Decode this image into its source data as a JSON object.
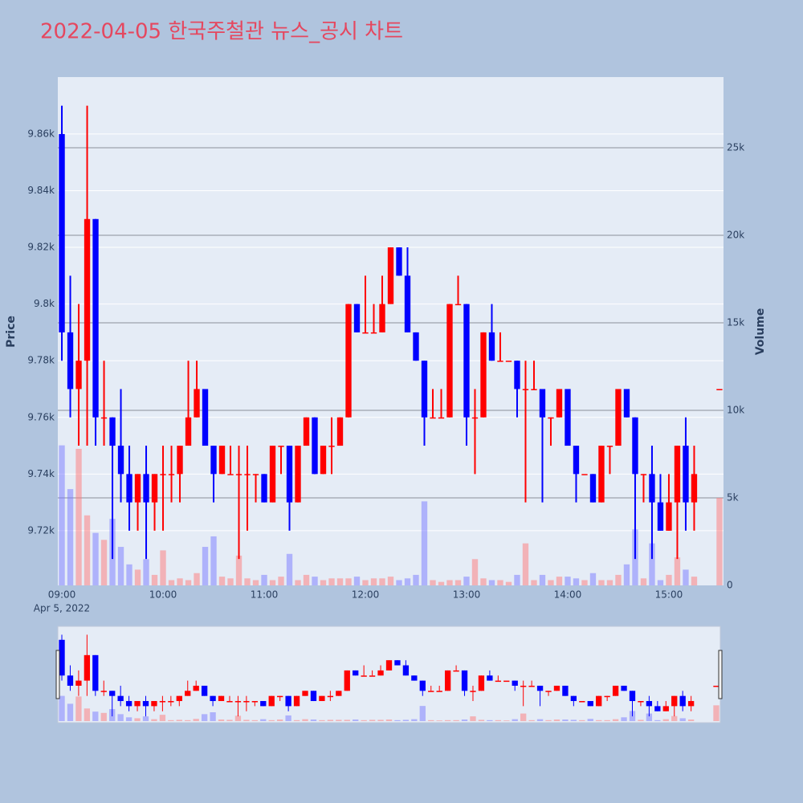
{
  "chart_data": {
    "type": "candlestick",
    "title": "2022-04-05 한국주철관 뉴스_공시 차트",
    "ylabel": "Price",
    "y2label": "Volume",
    "x_date_label": "Apr 5, 2022",
    "increasing_color": "#ff0000",
    "decreasing_color": "#0000ff",
    "volume_increasing_color": "rgba(255,120,120,0.5)",
    "volume_decreasing_color": "rgba(120,120,255,0.5)",
    "grid": true,
    "rangeslider": true,
    "x": [
      "2022-04-05 09:00",
      "2022-04-05 09:05",
      "2022-04-05 09:10",
      "2022-04-05 09:15",
      "2022-04-05 09:20",
      "2022-04-05 09:25",
      "2022-04-05 09:30",
      "2022-04-05 09:35",
      "2022-04-05 09:40",
      "2022-04-05 09:45",
      "2022-04-05 09:50",
      "2022-04-05 09:55",
      "2022-04-05 10:00",
      "2022-04-05 10:05",
      "2022-04-05 10:10",
      "2022-04-05 10:15",
      "2022-04-05 10:20",
      "2022-04-05 10:25",
      "2022-04-05 10:30",
      "2022-04-05 10:35",
      "2022-04-05 10:40",
      "2022-04-05 10:45",
      "2022-04-05 10:50",
      "2022-04-05 10:55",
      "2022-04-05 11:00",
      "2022-04-05 11:05",
      "2022-04-05 11:10",
      "2022-04-05 11:15",
      "2022-04-05 11:20",
      "2022-04-05 11:25",
      "2022-04-05 11:30",
      "2022-04-05 11:35",
      "2022-04-05 11:40",
      "2022-04-05 11:45",
      "2022-04-05 11:50",
      "2022-04-05 11:55",
      "2022-04-05 12:00",
      "2022-04-05 12:05",
      "2022-04-05 12:10",
      "2022-04-05 12:15",
      "2022-04-05 12:20",
      "2022-04-05 12:25",
      "2022-04-05 12:30",
      "2022-04-05 12:35",
      "2022-04-05 12:40",
      "2022-04-05 12:45",
      "2022-04-05 12:50",
      "2022-04-05 12:55",
      "2022-04-05 13:00",
      "2022-04-05 13:05",
      "2022-04-05 13:10",
      "2022-04-05 13:15",
      "2022-04-05 13:20",
      "2022-04-05 13:25",
      "2022-04-05 13:30",
      "2022-04-05 13:35",
      "2022-04-05 13:40",
      "2022-04-05 13:45",
      "2022-04-05 13:50",
      "2022-04-05 13:55",
      "2022-04-05 14:00",
      "2022-04-05 14:05",
      "2022-04-05 14:10",
      "2022-04-05 14:15",
      "2022-04-05 14:20",
      "2022-04-05 14:25",
      "2022-04-05 14:30",
      "2022-04-05 14:35",
      "2022-04-05 14:40",
      "2022-04-05 14:45",
      "2022-04-05 14:50",
      "2022-04-05 14:55",
      "2022-04-05 15:00",
      "2022-04-05 15:05",
      "2022-04-05 15:10",
      "2022-04-05 15:15",
      "2022-04-05 15:30"
    ],
    "open": [
      9860,
      9790,
      9770,
      9780,
      9830,
      9760,
      9760,
      9750,
      9740,
      9730,
      9740,
      9730,
      9740,
      9740,
      9740,
      9750,
      9760,
      9770,
      9750,
      9740,
      9740,
      9740,
      9740,
      9740,
      9740,
      9730,
      9750,
      9750,
      9730,
      9750,
      9760,
      9740,
      9750,
      9750,
      9760,
      9800,
      9790,
      9790,
      9790,
      9800,
      9820,
      9810,
      9790,
      9780,
      9760,
      9760,
      9760,
      9800,
      9800,
      9760,
      9760,
      9790,
      9780,
      9780,
      9780,
      9770,
      9770,
      9770,
      9760,
      9760,
      9770,
      9750,
      9740,
      9740,
      9730,
      9750,
      9750,
      9770,
      9760,
      9740,
      9740,
      9730,
      9720,
      9730,
      9750,
      9730,
      9770
    ],
    "high": [
      9870,
      9810,
      9800,
      9870,
      9830,
      9780,
      9760,
      9770,
      9750,
      9740,
      9750,
      9740,
      9750,
      9750,
      9750,
      9780,
      9780,
      9770,
      9750,
      9750,
      9750,
      9750,
      9750,
      9740,
      9740,
      9750,
      9750,
      9750,
      9750,
      9760,
      9760,
      9750,
      9760,
      9760,
      9800,
      9800,
      9810,
      9800,
      9810,
      9820,
      9820,
      9820,
      9790,
      9780,
      9770,
      9770,
      9800,
      9810,
      9800,
      9770,
      9790,
      9800,
      9790,
      9780,
      9780,
      9780,
      9780,
      9770,
      9760,
      9770,
      9770,
      9750,
      9740,
      9740,
      9750,
      9750,
      9770,
      9770,
      9760,
      9740,
      9750,
      9740,
      9740,
      9750,
      9760,
      9750,
      9770
    ],
    "low": [
      9780,
      9760,
      9750,
      9750,
      9750,
      9750,
      9710,
      9730,
      9720,
      9720,
      9710,
      9720,
      9720,
      9730,
      9730,
      9750,
      9760,
      9750,
      9730,
      9740,
      9740,
      9710,
      9720,
      9730,
      9730,
      9730,
      9740,
      9720,
      9730,
      9750,
      9740,
      9740,
      9740,
      9750,
      9760,
      9790,
      9790,
      9790,
      9790,
      9800,
      9810,
      9790,
      9780,
      9750,
      9760,
      9760,
      9760,
      9800,
      9750,
      9740,
      9760,
      9780,
      9780,
      9780,
      9760,
      9730,
      9770,
      9730,
      9750,
      9760,
      9750,
      9730,
      9740,
      9730,
      9730,
      9740,
      9750,
      9760,
      9710,
      9730,
      9710,
      9720,
      9720,
      9710,
      9720,
      9720,
      9770
    ],
    "close": [
      9790,
      9770,
      9780,
      9830,
      9760,
      9760,
      9750,
      9740,
      9730,
      9740,
      9730,
      9740,
      9740,
      9740,
      9750,
      9760,
      9770,
      9750,
      9740,
      9750,
      9740,
      9740,
      9740,
      9740,
      9730,
      9750,
      9750,
      9730,
      9750,
      9760,
      9740,
      9750,
      9750,
      9760,
      9800,
      9790,
      9790,
      9790,
      9800,
      9820,
      9810,
      9790,
      9780,
      9760,
      9760,
      9760,
      9800,
      9800,
      9760,
      9760,
      9790,
      9780,
      9780,
      9780,
      9770,
      9770,
      9770,
      9760,
      9760,
      9770,
      9750,
      9740,
      9740,
      9730,
      9750,
      9750,
      9770,
      9760,
      9740,
      9740,
      9730,
      9720,
      9730,
      9750,
      9730,
      9740,
      9770
    ],
    "volume": [
      8000,
      5500,
      7800,
      4000,
      3000,
      2600,
      3800,
      2200,
      1200,
      900,
      1500,
      600,
      2000,
      300,
      400,
      300,
      700,
      2200,
      2800,
      500,
      400,
      1700,
      400,
      300,
      600,
      300,
      500,
      1800,
      300,
      600,
      500,
      300,
      400,
      400,
      400,
      500,
      300,
      400,
      400,
      500,
      300,
      400,
      600,
      4800,
      300,
      200,
      300,
      300,
      500,
      1500,
      400,
      300,
      300,
      200,
      600,
      2400,
      300,
      600,
      300,
      500,
      500,
      400,
      300,
      700,
      300,
      300,
      600,
      1200,
      3200,
      400,
      2400,
      300,
      600,
      1600,
      900,
      500,
      5000
    ],
    "xlim": [
      "2022-04-05 08:57:36",
      "2022-04-05 15:32:24"
    ],
    "xticks": [
      {
        "value": "2022-04-05 09:00",
        "label": "09:00"
      },
      {
        "value": "2022-04-05 10:00",
        "label": "10:00"
      },
      {
        "value": "2022-04-05 11:00",
        "label": "11:00"
      },
      {
        "value": "2022-04-05 12:00",
        "label": "12:00"
      },
      {
        "value": "2022-04-05 13:00",
        "label": "13:00"
      },
      {
        "value": "2022-04-05 14:00",
        "label": "14:00"
      },
      {
        "value": "2022-04-05 15:00",
        "label": "15:00"
      }
    ],
    "ylim": [
      9700.7,
      9880.1
    ],
    "yticks": [
      {
        "value": 9720,
        "label": "9.72k"
      },
      {
        "value": 9740,
        "label": "9.74k"
      },
      {
        "value": 9760,
        "label": "9.76k"
      },
      {
        "value": 9780,
        "label": "9.78k"
      },
      {
        "value": 9800,
        "label": "9.8k"
      },
      {
        "value": 9820,
        "label": "9.82k"
      },
      {
        "value": 9840,
        "label": "9.84k"
      },
      {
        "value": 9860,
        "label": "9.86k"
      }
    ],
    "y2lim": [
      0,
      29037
    ],
    "y2ticks": [
      0,
      {
        "value": 5000,
        "label": "5k"
      },
      {
        "value": 10000,
        "label": "10k"
      },
      {
        "value": 15000,
        "label": "15k"
      },
      {
        "value": 20000,
        "label": "20k"
      },
      {
        "value": 25000,
        "label": "25k"
      }
    ]
  }
}
